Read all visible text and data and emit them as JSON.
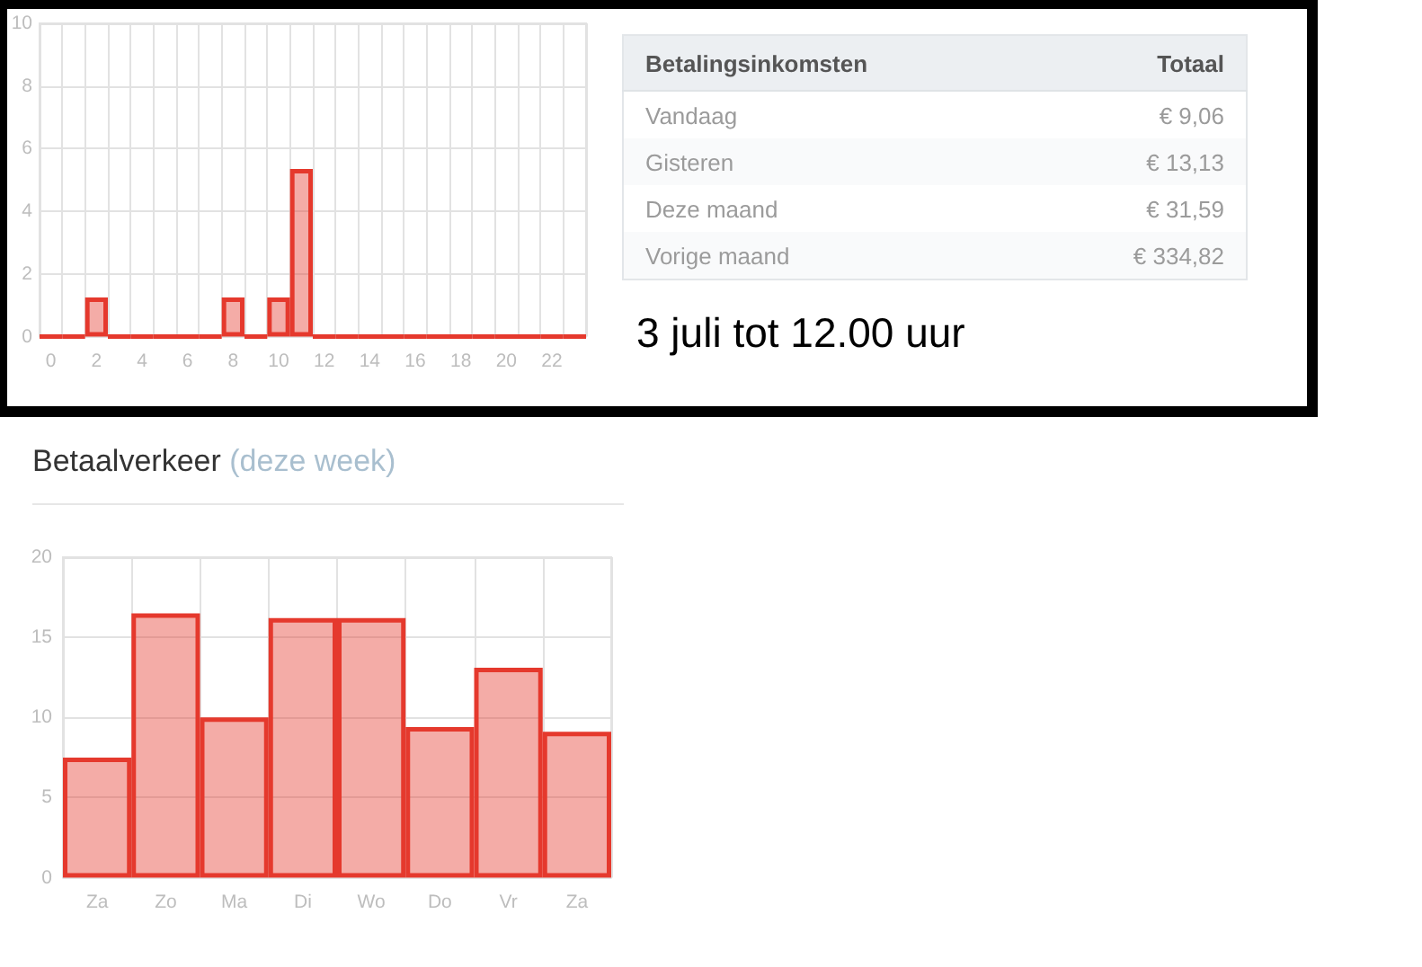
{
  "chart_data": [
    {
      "type": "bar",
      "categories": [
        "0",
        null,
        "2",
        null,
        "4",
        null,
        "6",
        null,
        "8",
        null,
        "10",
        null,
        "12",
        null,
        "14",
        null,
        "16",
        null,
        "18",
        null,
        "20",
        null,
        "22",
        null
      ],
      "values": [
        0,
        0,
        1.25,
        0,
        0,
        0,
        0,
        0,
        1.25,
        0,
        1.25,
        5.35,
        0,
        0,
        0,
        0,
        0,
        0,
        0,
        0,
        0,
        0,
        0,
        0
      ],
      "color": "#e5392d",
      "ylim": [
        0,
        10
      ],
      "yticks": [
        0,
        2,
        4,
        6,
        8,
        10
      ],
      "grid": true
    },
    {
      "type": "other",
      "xlabel": "Betalingsinkomsten",
      "ylabel": "Totaal",
      "categories": [
        "Vandaag",
        "Gisteren",
        "Deze maand",
        "Vorige maand"
      ],
      "value_labels": [
        "€ 9,06",
        "€ 13,13",
        "€ 31,59",
        "€ 334,82"
      ],
      "annotations": [
        "3 juli tot 12.00 uur"
      ]
    },
    {
      "type": "bar",
      "title": "Betaalverkeer",
      "subtitle": "(deze week)",
      "categories": [
        "Za",
        "Zo",
        "Ma",
        "Di",
        "Wo",
        "Do",
        "Vr",
        "Za"
      ],
      "values": [
        7.5,
        16.5,
        10,
        16.2,
        16.2,
        9.4,
        13.1,
        9.1
      ],
      "color": "#e5392d",
      "ylim": [
        0,
        20
      ],
      "yticks": [
        0,
        5,
        10,
        15,
        20
      ],
      "grid": true
    }
  ]
}
